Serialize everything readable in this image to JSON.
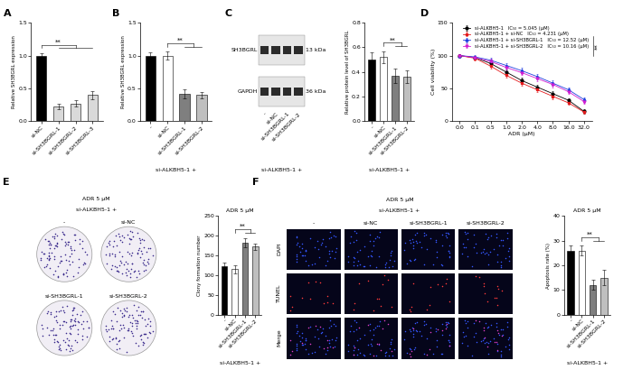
{
  "chart_data": [
    {
      "panel": "A",
      "type": "bar",
      "ylabel": "Relative SH3BGRL expression",
      "categories": [
        "si-NC",
        "si-SH3BGRL-1",
        "si-SH3BGRL-2",
        "si-SH3BGRL-3"
      ],
      "values": [
        1.0,
        0.22,
        0.27,
        0.4
      ],
      "errors": [
        0.04,
        0.04,
        0.05,
        0.06
      ],
      "colors": [
        "#000000",
        "#d9d9d9",
        "#d9d9d9",
        "#d9d9d9"
      ],
      "ylim": [
        0,
        1.5
      ],
      "yticks": [
        {
          "value": 0,
          "label": "0.0"
        },
        0.5,
        {
          "value": 1,
          "label": "1.0"
        },
        1.5
      ],
      "significance": {
        "text": "**",
        "from": "si-NC",
        "to": [
          "si-SH3BGRL-1",
          "si-SH3BGRL-3"
        ]
      }
    },
    {
      "panel": "B",
      "type": "bar",
      "ylabel": "Relative SH3BGRL expression",
      "categories": [
        "-",
        "si-NC",
        "si-SH3BGRL-1",
        "si-SH3BGRL-2"
      ],
      "group_label": "si-ALKBH5-1 +",
      "values": [
        1.0,
        1.0,
        0.42,
        0.4
      ],
      "errors": [
        0.05,
        0.06,
        0.07,
        0.05
      ],
      "colors": [
        "#000000",
        "#ffffff",
        "#7f7f7f",
        "#bfbfbf"
      ],
      "ylim": [
        0,
        1.5
      ],
      "yticks": [
        {
          "value": 0,
          "label": "0.0"
        },
        0.5,
        {
          "value": 1,
          "label": "1.0"
        },
        1.5
      ],
      "significance": {
        "text": "**",
        "from": "si-NC",
        "to": [
          "si-SH3BGRL-1",
          "si-SH3BGRL-2"
        ]
      }
    },
    {
      "panel": "C",
      "type": "bar",
      "ylabel": "Relative protein level of SH3BGRL",
      "categories": [
        "-",
        "si-NC",
        "si-SH3BGRL-1",
        "si-SH3BGRL-2"
      ],
      "group_label": "si-ALKBH5-1 +",
      "values": [
        0.5,
        0.52,
        0.37,
        0.36
      ],
      "errors": [
        0.06,
        0.05,
        0.06,
        0.05
      ],
      "colors": [
        "#000000",
        "#ffffff",
        "#7f7f7f",
        "#bfbfbf"
      ],
      "ylim": [
        0,
        0.8
      ],
      "yticks": [
        {
          "value": 0,
          "label": "0.0"
        },
        0.2,
        0.4,
        0.6,
        0.8
      ],
      "significance": {
        "text": "**",
        "from": "si-NC",
        "to": [
          "si-SH3BGRL-1",
          "si-SH3BGRL-2"
        ]
      }
    },
    {
      "panel": "D",
      "type": "line",
      "xlabel": "ADR (μM)",
      "ylabel": "Cell viability (%)",
      "categories": [
        "0.0",
        "0.1",
        "0.5",
        "1.0",
        "2.0",
        "4.0",
        "8.0",
        "16.0",
        "32.0"
      ],
      "ylim": [
        0,
        150
      ],
      "yticks": [
        0,
        50,
        100,
        150
      ],
      "legend": "upper right",
      "series": [
        {
          "name": "si-ALKBH5-1",
          "ic50_label": "IC₅₀ = 5.045 (μM)",
          "color": "#000000",
          "marker": "circle",
          "line_style": "solid",
          "values": [
            100,
            97,
            88,
            75,
            62,
            52,
            42,
            32,
            15
          ],
          "errors": [
            2,
            3,
            4,
            4,
            4,
            4,
            4,
            3,
            3
          ]
        },
        {
          "name": "si-ALKBH5-1 + si-NC",
          "ic50_label": "IC₅₀ = 4.231 (μM)",
          "color": "#e41a1c",
          "marker": "square",
          "line_style": "solid",
          "values": [
            100,
            96,
            84,
            70,
            58,
            48,
            38,
            28,
            14
          ],
          "errors": [
            2,
            3,
            4,
            4,
            4,
            4,
            4,
            3,
            3
          ]
        },
        {
          "name": "si-ALKBH5-1 + si-SH3BGRL-1",
          "ic50_label": "IC₅₀ = 12.52 (μM)",
          "color": "#1f3ee0",
          "marker": "triangle_up",
          "line_style": "solid",
          "values": [
            100,
            98,
            93,
            85,
            77,
            68,
            58,
            48,
            33
          ],
          "errors": [
            2,
            3,
            4,
            4,
            4,
            4,
            4,
            3,
            3
          ]
        },
        {
          "name": "si-ALKBH5-1 + si-SH3BGRL-2",
          "ic50_label": "IC₅₀ = 10.16 (μM)",
          "color": "#d11fd1",
          "marker": "triangle_down",
          "line_style": "solid",
          "values": [
            100,
            97,
            91,
            82,
            74,
            65,
            56,
            45,
            30
          ],
          "errors": [
            2,
            3,
            4,
            4,
            4,
            4,
            4,
            3,
            3
          ]
        }
      ],
      "significance": {
        "text": "**",
        "from": "si-ALKBH5-1 + si-NC",
        "to": [
          "si-ALKBH5-1 + si-SH3BGRL-1",
          "si-ALKBH5-1 + si-SH3BGRL-2"
        ]
      }
    },
    {
      "panel": "E",
      "type": "bar",
      "title": "ADR 5 μM",
      "ylabel": "Clony formation number",
      "categories": [
        "-",
        "si-NC",
        "si-SH3BGRL-1",
        "si-SH3BGRL-2"
      ],
      "group_label": "si-ALKBH5-1 +",
      "values": [
        122,
        115,
        182,
        172
      ],
      "errors": [
        10,
        11,
        11,
        9
      ],
      "colors": [
        "#000000",
        "#ffffff",
        "#7f7f7f",
        "#bfbfbf"
      ],
      "ylim": [
        0,
        250
      ],
      "yticks": [
        0,
        50,
        100,
        150,
        200,
        250
      ],
      "significance": {
        "text": "**",
        "from": "si-NC",
        "to": [
          "si-SH3BGRL-1",
          "si-SH3BGRL-2"
        ]
      }
    },
    {
      "panel": "F",
      "type": "bar",
      "title": "ADR 5 μM",
      "ylabel": "Apoptosis rate (%)",
      "categories": [
        "-",
        "si-NC",
        "si-SH3BGRL-1",
        "si-SH3BGRL-2"
      ],
      "group_label": "si-ALKBH5-1 +",
      "values": [
        26,
        26,
        12,
        15
      ],
      "errors": [
        2,
        2,
        2,
        3
      ],
      "colors": [
        "#000000",
        "#ffffff",
        "#7f7f7f",
        "#bfbfbf"
      ],
      "ylim": [
        0,
        40
      ],
      "yticks": [
        0,
        10,
        20,
        30,
        40
      ],
      "significance": {
        "text": "**",
        "from": "si-NC",
        "to": [
          "si-SH3BGRL-1",
          "si-SH3BGRL-2"
        ]
      }
    }
  ],
  "images": {
    "western_blot": {
      "lanes": [
        "-",
        "si-NC",
        "si-SH3BGRL-1",
        "si-SH3BGRL-2"
      ],
      "group_label": "si-ALKBH5-1 +",
      "bands": [
        {
          "name": "SH3BGRL",
          "size": "13 kDa"
        },
        {
          "name": "GAPDH",
          "size": "36 kDa"
        }
      ]
    },
    "colony_dishes": {
      "title": "ADR 5 μM",
      "group_label": "si-ALKBH5-1 +",
      "dishes": [
        "-",
        "si-NC",
        "si-SH3BGRL-1",
        "si-SH3BGRL-2"
      ]
    },
    "tunel_staining": {
      "title": "ADR 5 μM",
      "group_label": "si-ALKBH5-1 +",
      "columns": [
        "-",
        "si-NC",
        "si-SH3BGRL-1",
        "si-SH3BGRL-2"
      ],
      "rows": [
        "DAPI",
        "TUNEL",
        "Merge"
      ]
    }
  }
}
